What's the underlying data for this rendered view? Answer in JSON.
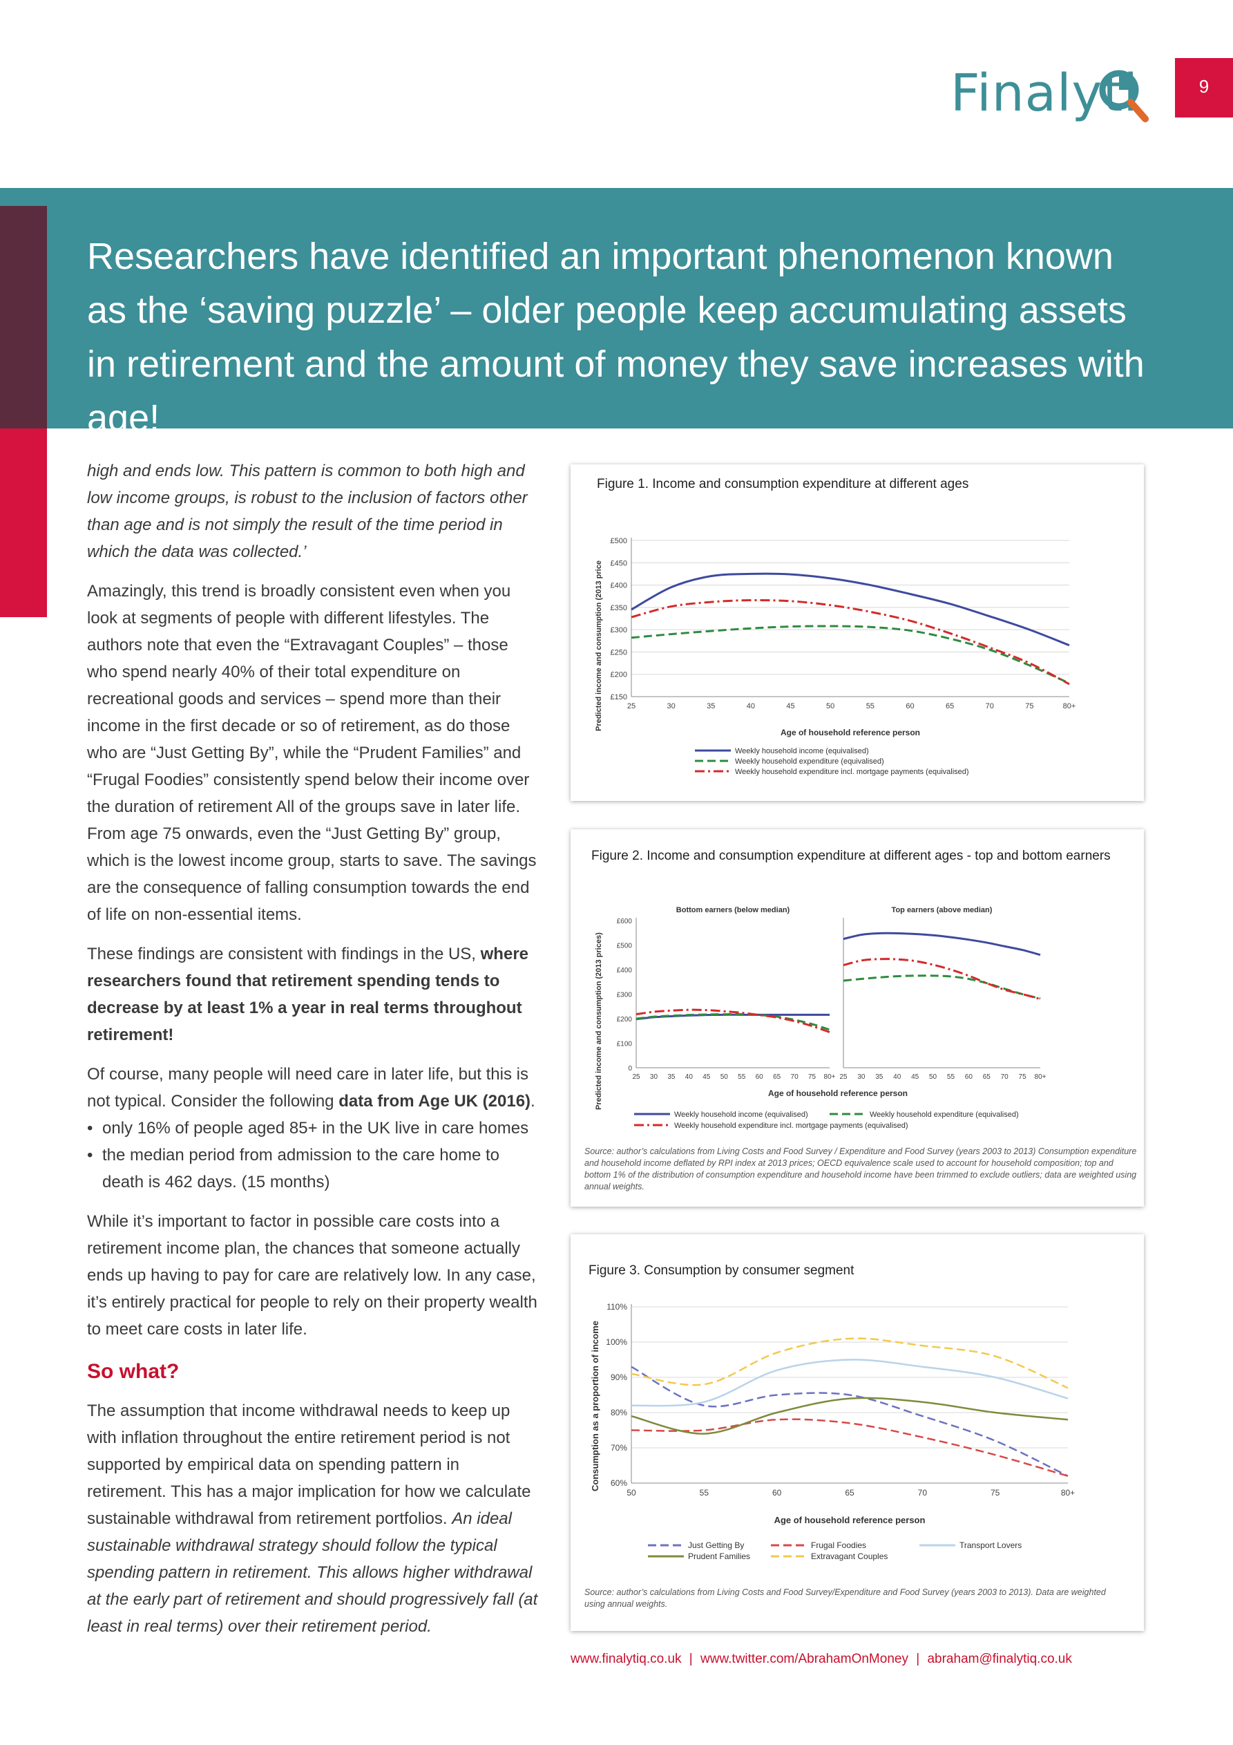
{
  "header": {
    "logo_text": "Finalyti",
    "logo_icon": "magnifier-q-icon",
    "page_number": "9",
    "colors": {
      "teal": "#3d8f98",
      "red": "#d6123f",
      "dark": "#5b2c3e",
      "heading_red": "#c8102e"
    }
  },
  "banner": {
    "text": "Researchers have identified an important phenomenon known as the ‘saving puzzle’ – older people keep accumulating assets in retirement and the amount of money they save increases with age!"
  },
  "body": {
    "quote_end": "high and ends low. This pattern is common to both high and low income groups, is robust to the inclusion of factors other than age and is not simply the result of the time period in which the data was collected.’",
    "para2": "Amazingly, this trend is broadly consistent even when you look at segments of people with different lifestyles. The authors note that even the “Extravagant Couples” – those who spend nearly 40% of their total expenditure on recreational goods and services – spend more than their income in the first decade or so of retirement, as do those who are “Just Getting By”, while the “Prudent Families” and “Frugal Foodies” consistently spend below their income over the duration of retirement All of the groups save in later life. From age 75 onwards, even the “Just Getting By” group, which is the lowest income group, starts to save. The savings are the consequence of falling consumption towards the end of life on non-essential items.",
    "para3_a": "These findings are consistent with findings in the US,",
    "para3_b": "where researchers found that retirement spending tends to decrease by at least 1% a year in real terms throughout retirement!",
    "para4_a": "Of course, many people will need care in later life, but this is not typical. Consider the following",
    "para4_b": "data from Age UK (2016)",
    "para4_c": ".",
    "bullets": [
      "only 16% of people aged 85+ in the UK live in care homes",
      "the median period from admission to the care home to death is 462 days. (15 months)"
    ],
    "para5": "While it’s important to factor in possible care costs into a retirement income plan, the chances that someone actually ends up having to pay for care are relatively low. In any case, it’s entirely practical for people to rely on their property wealth to meet care costs in later life.",
    "so_what": "So what?",
    "para6_a": "The assumption that income withdrawal needs to keep up with inflation throughout the entire retirement period is not supported by empirical data on spending pattern in retirement. This has a major implication for how we calculate sustainable withdrawal from retirement portfolios.",
    "para6_b": "An ideal sustainable withdrawal strategy should follow the typical spending pattern in retirement. This allows higher withdrawal at the early part of retirement and should progressively fall (at least in real terms) over their retirement period."
  },
  "footer": {
    "website": "www.finalytiq.co.uk",
    "twitter": "www.twitter.com/AbrahamOnMoney",
    "email": "abraham@finalytiq.co.uk",
    "sep": "|"
  },
  "chart_data": [
    {
      "type": "line",
      "title": "Figure 1. Income and consumption expenditure at different ages",
      "xlabel": "Age of household reference person",
      "ylabel": "Predicted income and consumption (2013 price",
      "x": [
        25,
        30,
        35,
        40,
        45,
        50,
        55,
        60,
        65,
        70,
        75,
        80
      ],
      "x_tick_labels": [
        "25",
        "30",
        "35",
        "40",
        "45",
        "50",
        "55",
        "60",
        "65",
        "70",
        "75",
        "80+"
      ],
      "y_tick_labels": [
        "£150",
        "£200",
        "£250",
        "£300",
        "£350",
        "£400",
        "£450",
        "£500"
      ],
      "ylim": [
        150,
        500
      ],
      "series": [
        {
          "name": "Weekly household income (equivalised)",
          "color": "#3e4a9e",
          "dash": "solid",
          "values": [
            345,
            395,
            420,
            425,
            424,
            415,
            400,
            380,
            358,
            330,
            300,
            265
          ]
        },
        {
          "name": "Weekly household expenditure (equivalised)",
          "color": "#2e8b3e",
          "dash": "dashed",
          "values": [
            282,
            290,
            297,
            303,
            307,
            308,
            306,
            298,
            280,
            255,
            220,
            180
          ]
        },
        {
          "name": "Weekly household expenditure incl. mortgage payments (equivalised)",
          "color": "#d42a2a",
          "dash": "dashdot",
          "values": [
            328,
            352,
            362,
            366,
            364,
            355,
            340,
            320,
            292,
            260,
            225,
            178
          ]
        }
      ],
      "grid": true,
      "legend": "bottom"
    },
    {
      "type": "line",
      "title": "Figure 2. Income and consumption expenditure at different ages - top and bottom earners",
      "xlabel": "Age of household reference person",
      "ylabel": "Predicted income and consumption (2013 prices)",
      "panels": [
        "Bottom earners (below median)",
        "Top earners (above median)"
      ],
      "x": [
        25,
        30,
        35,
        40,
        45,
        50,
        55,
        60,
        65,
        70,
        75,
        80
      ],
      "x_tick_labels": [
        "25",
        "30",
        "35",
        "40",
        "45",
        "50",
        "55",
        "60",
        "65",
        "70",
        "75",
        "80+"
      ],
      "y_tick_labels": [
        "0",
        "£100",
        "£200",
        "£300",
        "£400",
        "£500",
        "£600"
      ],
      "ylim": [
        0,
        600
      ],
      "series": [
        {
          "name": "Weekly household income (equivalised)",
          "panel": 0,
          "color": "#3e4a9e",
          "dash": "solid",
          "values": [
            198,
            206,
            210,
            213,
            215,
            216,
            216,
            216,
            216,
            216,
            216,
            216
          ]
        },
        {
          "name": "Weekly household expenditure (equivalised)",
          "panel": 0,
          "color": "#2e8b3e",
          "dash": "dashed",
          "values": [
            200,
            208,
            212,
            215,
            217,
            218,
            218,
            215,
            208,
            195,
            178,
            155
          ]
        },
        {
          "name": "Weekly household expenditure incl. mortgage payments",
          "panel": 0,
          "color": "#d42a2a",
          "dash": "dashdot",
          "values": [
            218,
            228,
            233,
            236,
            235,
            230,
            224,
            215,
            205,
            190,
            170,
            145
          ]
        },
        {
          "name": "Weekly household income (equivalised)",
          "panel": 1,
          "color": "#3e4a9e",
          "dash": "solid",
          "values": [
            525,
            542,
            548,
            548,
            545,
            540,
            532,
            522,
            510,
            495,
            480,
            460
          ]
        },
        {
          "name": "Weekly household expenditure (equivalised)",
          "panel": 1,
          "color": "#2e8b3e",
          "dash": "dashed",
          "values": [
            355,
            362,
            368,
            373,
            375,
            375,
            372,
            362,
            345,
            322,
            300,
            282
          ]
        },
        {
          "name": "Weekly household expenditure incl. mortgage payments",
          "panel": 1,
          "color": "#d42a2a",
          "dash": "dashdot",
          "values": [
            418,
            437,
            443,
            442,
            435,
            420,
            400,
            375,
            345,
            318,
            300,
            280
          ]
        }
      ],
      "legend": "bottom",
      "legend_labels": [
        "Weekly household income (equivalised)",
        "Weekly household expenditure (equivalised)",
        "Weekly household expenditure incl. mortgage payments (equivalised)"
      ],
      "source": "Source: author’s calculations from Living Costs and Food Survey / Expenditure and Food Survey (years 2003 to 2013) Consumption expenditure and household income deflated by RPI index at 2013 prices; OECD equivalence scale used to account for household composition; top and bottom 1% of the distribution of consumption expenditure and household income have been trimmed to exclude outliers; data are weighted using annual weights."
    },
    {
      "type": "line",
      "title": "Figure 3. Consumption by consumer segment",
      "xlabel": "Age of household reference person",
      "ylabel": "Consumption as a proportion of income",
      "x": [
        50,
        55,
        60,
        65,
        70,
        75,
        80
      ],
      "x_tick_labels": [
        "50",
        "55",
        "60",
        "65",
        "70",
        "75",
        "80+"
      ],
      "y_tick_labels": [
        "60%",
        "70%",
        "80%",
        "90%",
        "100%",
        "110%"
      ],
      "ylim": [
        60,
        110
      ],
      "series": [
        {
          "name": "Just Getting By",
          "color": "#6b72c0",
          "dash": "dashed",
          "values": [
            93,
            82,
            85,
            85,
            79,
            72,
            62
          ]
        },
        {
          "name": "Frugal Foodies",
          "color": "#d84848",
          "dash": "dashed",
          "values": [
            75,
            75,
            78,
            77,
            73,
            68,
            62
          ]
        },
        {
          "name": "Transport Lovers",
          "color": "#b9d3ea",
          "dash": "solid",
          "values": [
            82,
            83,
            92,
            95,
            93,
            90,
            84
          ]
        },
        {
          "name": "Prudent Families",
          "color": "#7d8b3c",
          "dash": "solid",
          "values": [
            79,
            74,
            80,
            84,
            83,
            80,
            78
          ]
        },
        {
          "name": "Extravagant Couples",
          "color": "#f2c94c",
          "dash": "dashed",
          "values": [
            91,
            88,
            97,
            101,
            99,
            96,
            87
          ]
        }
      ],
      "grid": true,
      "legend": "bottom",
      "source": "Source: author’s calculations from Living Costs and Food Survey/Expenditure and Food Survey (years 2003 to 2013). Data are weighted using annual weights."
    }
  ]
}
